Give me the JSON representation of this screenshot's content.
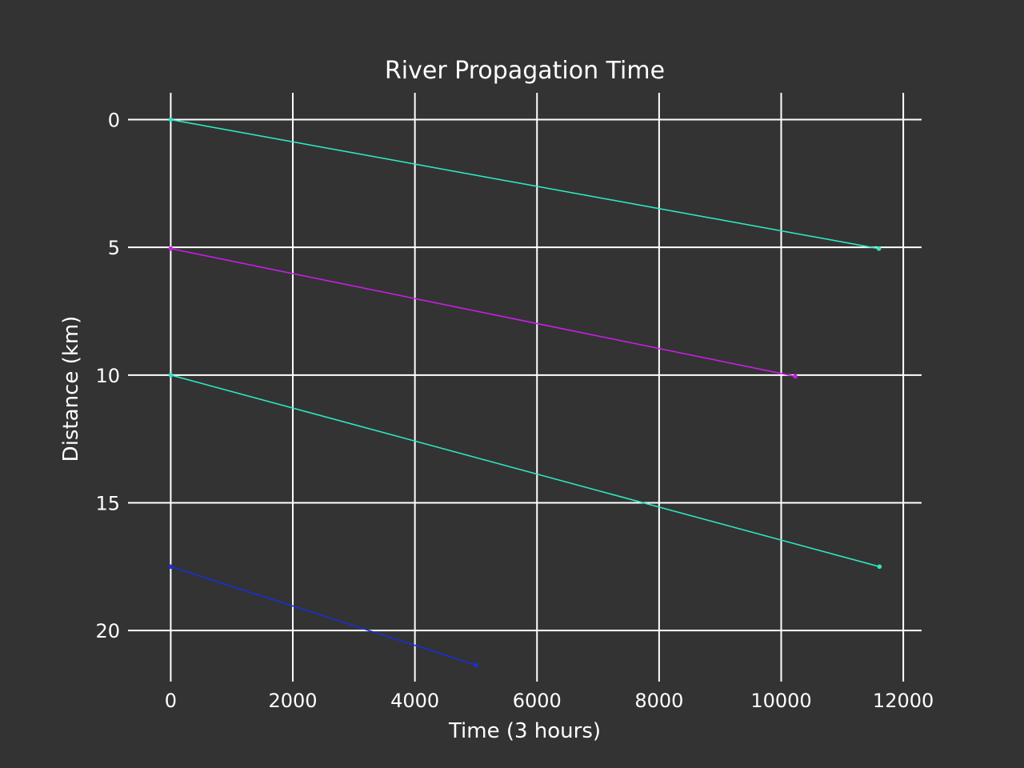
{
  "chart_data": {
    "type": "line",
    "title": "River Propagation Time",
    "xlabel": "Time (3 hours)",
    "ylabel": "Distance (km)",
    "xlim": [
      -700,
      12300
    ],
    "ylim": [
      22.0,
      -1.05
    ],
    "y_inverted": true,
    "x_ticks": [
      0,
      2000,
      4000,
      6000,
      8000,
      10000,
      12000
    ],
    "x_tick_labels": [
      "0",
      "2000",
      "4000",
      "6000",
      "8000",
      "10000",
      "12000"
    ],
    "y_ticks": [
      0,
      5,
      10,
      15,
      20
    ],
    "y_tick_labels": [
      "0",
      "5",
      "10",
      "15",
      "20"
    ],
    "grid": true,
    "background": "#333333",
    "series": [
      {
        "color": "#2ee6c0",
        "x": [
          0,
          11600
        ],
        "y": [
          0.0,
          5.05
        ]
      },
      {
        "color": "#c81ee6",
        "x": [
          0,
          10230
        ],
        "y": [
          5.05,
          10.05
        ]
      },
      {
        "color": "#2ee6c0",
        "x": [
          0,
          11610
        ],
        "y": [
          10.0,
          17.5
        ]
      },
      {
        "color": "#1a2ed6",
        "x": [
          0,
          5000
        ],
        "y": [
          17.5,
          21.35
        ]
      }
    ]
  }
}
